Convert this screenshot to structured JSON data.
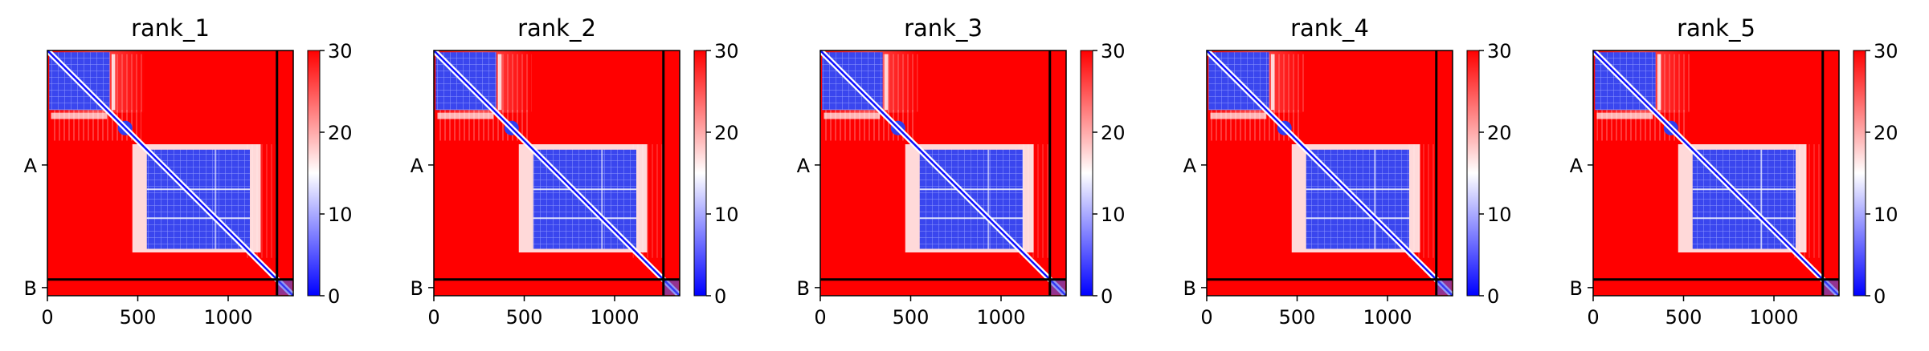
{
  "chart_data": [
    {
      "type": "heatmap",
      "title": "rank_1",
      "x_ticks": [
        0,
        500,
        1000
      ],
      "y_tick_labels": [
        "A",
        "B"
      ],
      "xlim": [
        0,
        1360
      ],
      "colorbar": {
        "ticks": [
          0,
          10,
          20,
          30
        ],
        "range": [
          0,
          30
        ],
        "colors": [
          "#0000ff",
          "#ffffff",
          "#ff0000"
        ]
      },
      "chain_lengths": {
        "A": 1270,
        "B": 90
      }
    },
    {
      "type": "heatmap",
      "title": "rank_2",
      "x_ticks": [
        0,
        500,
        1000
      ],
      "y_tick_labels": [
        "A",
        "B"
      ],
      "xlim": [
        0,
        1360
      ],
      "colorbar": {
        "ticks": [
          0,
          10,
          20,
          30
        ],
        "range": [
          0,
          30
        ],
        "colors": [
          "#0000ff",
          "#ffffff",
          "#ff0000"
        ]
      },
      "chain_lengths": {
        "A": 1270,
        "B": 90
      }
    },
    {
      "type": "heatmap",
      "title": "rank_3",
      "x_ticks": [
        0,
        500,
        1000
      ],
      "y_tick_labels": [
        "A",
        "B"
      ],
      "xlim": [
        0,
        1360
      ],
      "colorbar": {
        "ticks": [
          0,
          10,
          20,
          30
        ],
        "range": [
          0,
          30
        ],
        "colors": [
          "#0000ff",
          "#ffffff",
          "#ff0000"
        ]
      },
      "chain_lengths": {
        "A": 1270,
        "B": 90
      }
    },
    {
      "type": "heatmap",
      "title": "rank_4",
      "x_ticks": [
        0,
        500,
        1000
      ],
      "y_tick_labels": [
        "A",
        "B"
      ],
      "xlim": [
        0,
        1360
      ],
      "colorbar": {
        "ticks": [
          0,
          10,
          20,
          30
        ],
        "range": [
          0,
          30
        ],
        "colors": [
          "#0000ff",
          "#ffffff",
          "#ff0000"
        ]
      },
      "chain_lengths": {
        "A": 1270,
        "B": 90
      }
    },
    {
      "type": "heatmap",
      "title": "rank_5",
      "x_ticks": [
        0,
        500,
        1000
      ],
      "y_tick_labels": [
        "A",
        "B"
      ],
      "xlim": [
        0,
        1360
      ],
      "colorbar": {
        "ticks": [
          0,
          10,
          20,
          30
        ],
        "range": [
          0,
          30
        ],
        "colors": [
          "#0000ff",
          "#ffffff",
          "#ff0000"
        ]
      },
      "chain_lengths": {
        "A": 1270,
        "B": 90
      }
    }
  ]
}
